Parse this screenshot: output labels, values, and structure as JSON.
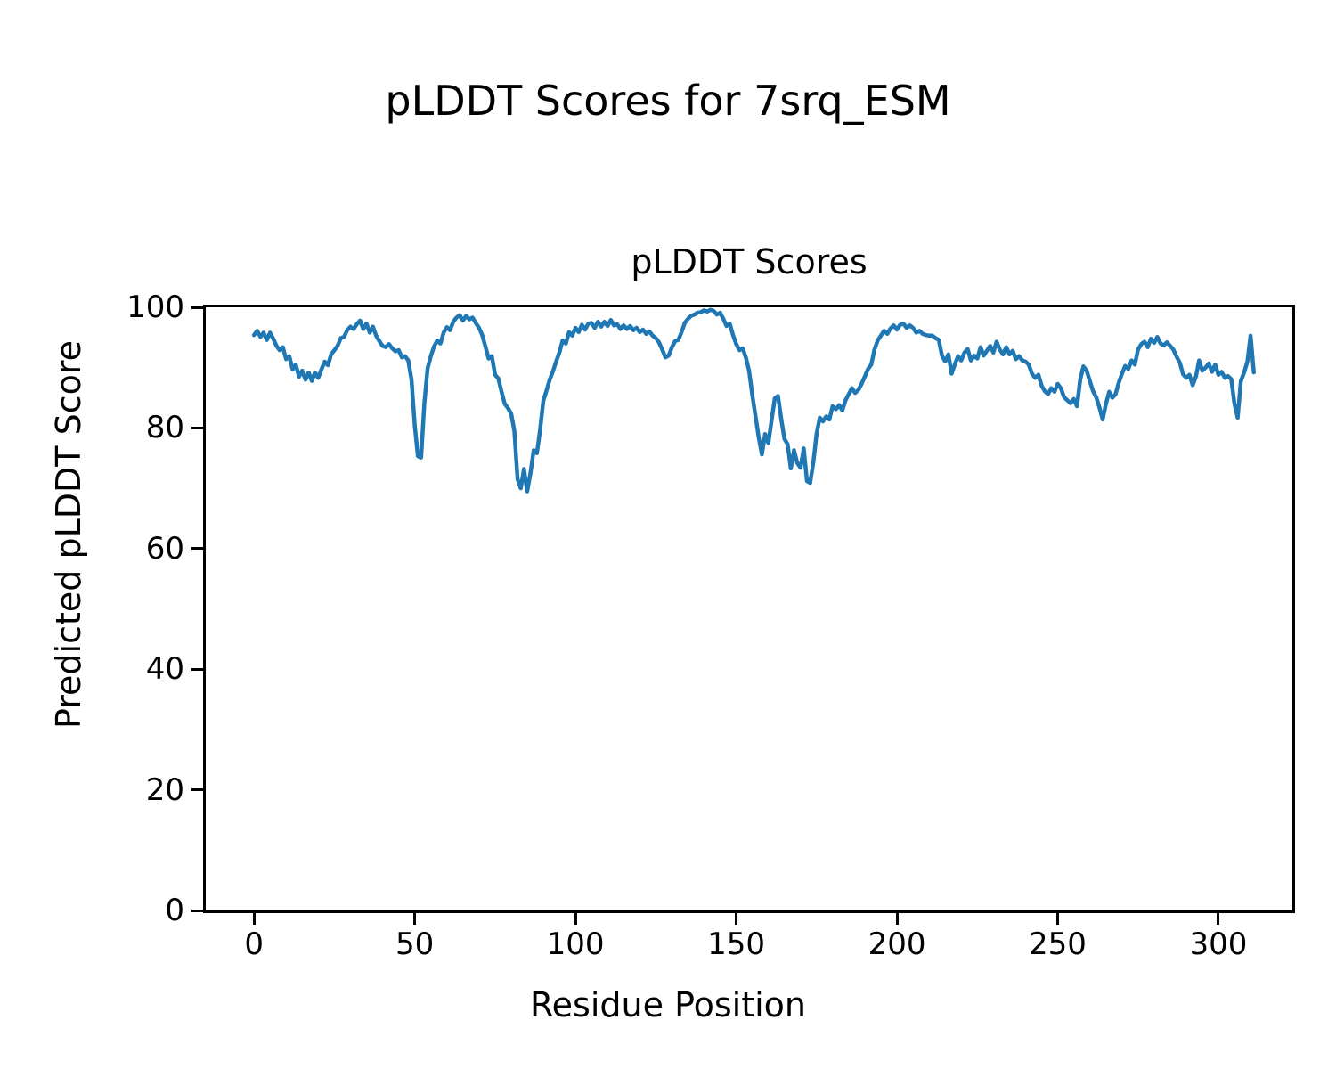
{
  "chart_data": {
    "type": "line",
    "suptitle": "pLDDT Scores for 7srq_ESM",
    "title": "pLDDT Scores",
    "xlabel": "Residue Position",
    "ylabel": "Predicted pLDDT Score",
    "legend": null,
    "grid": false,
    "line_color": "#1f77b4",
    "xlim": [
      -15,
      323
    ],
    "ylim": [
      0,
      100
    ],
    "xticks": [
      0,
      50,
      100,
      150,
      200,
      250,
      300
    ],
    "yticks": [
      0,
      20,
      40,
      60,
      80,
      100
    ],
    "x_start": 0,
    "x_step": 1,
    "series_name": "pLDDT",
    "values": [
      95.4,
      96.1,
      95.1,
      95.8,
      94.6,
      95.8,
      94.8,
      93.6,
      92.9,
      93.4,
      91.4,
      91.9,
      89.7,
      90.5,
      88.5,
      89.5,
      88.0,
      89.2,
      87.8,
      89.2,
      88.3,
      89.7,
      91.0,
      90.4,
      92.2,
      92.9,
      93.6,
      94.9,
      95.1,
      96.2,
      96.8,
      96.4,
      97.2,
      97.8,
      96.4,
      97.3,
      95.8,
      96.8,
      95.3,
      94.4,
      93.6,
      93.4,
      93.9,
      93.2,
      92.7,
      92.9,
      91.7,
      91.9,
      91.2,
      88.0,
      80.5,
      75.3,
      75.1,
      84.0,
      89.9,
      91.9,
      93.5,
      94.5,
      94.0,
      95.8,
      96.7,
      96.2,
      97.6,
      98.3,
      98.7,
      97.8,
      98.6,
      98.0,
      98.3,
      97.4,
      96.6,
      95.4,
      93.5,
      91.5,
      91.9,
      88.8,
      88.2,
      86.0,
      84.0,
      83.3,
      82.4,
      79.5,
      71.5,
      70.0,
      73.2,
      69.5,
      72.5,
      76.3,
      75.8,
      79.7,
      84.5,
      86.2,
      88.0,
      89.4,
      91.0,
      92.5,
      94.5,
      94.0,
      95.9,
      95.3,
      96.6,
      95.9,
      97.1,
      96.3,
      97.3,
      97.4,
      96.6,
      97.6,
      96.8,
      97.6,
      96.9,
      97.9,
      97.0,
      97.2,
      96.4,
      97.0,
      96.4,
      96.9,
      96.2,
      96.6,
      95.9,
      96.3,
      95.6,
      96.0,
      95.3,
      94.9,
      94.2,
      93.0,
      91.7,
      92.0,
      93.4,
      94.4,
      94.6,
      95.9,
      97.4,
      98.1,
      98.6,
      98.8,
      99.1,
      99.2,
      99.5,
      99.3,
      99.6,
      99.4,
      98.8,
      99.1,
      98.1,
      96.9,
      97.3,
      95.4,
      93.9,
      92.9,
      93.2,
      91.7,
      89.5,
      85.5,
      82.0,
      78.5,
      75.6,
      79.0,
      77.5,
      81.3,
      84.9,
      85.3,
      81.5,
      78.2,
      77.3,
      73.3,
      76.3,
      74.2,
      73.4,
      76.6,
      71.2,
      70.9,
      74.3,
      79.0,
      81.7,
      81.1,
      81.9,
      81.4,
      83.6,
      83.1,
      83.8,
      82.9,
      84.6,
      85.6,
      86.6,
      85.8,
      86.3,
      87.3,
      88.5,
      89.8,
      90.5,
      93.0,
      94.5,
      95.3,
      96.1,
      95.6,
      96.5,
      97.0,
      96.3,
      97.1,
      97.3,
      96.6,
      97.0,
      96.6,
      95.8,
      96.1,
      95.6,
      95.4,
      95.3,
      95.3,
      94.9,
      94.6,
      92.0,
      91.0,
      92.2,
      89.0,
      90.5,
      91.9,
      91.2,
      92.5,
      93.1,
      91.2,
      92.0,
      91.5,
      93.4,
      92.0,
      92.8,
      93.6,
      92.5,
      94.3,
      93.0,
      92.2,
      93.4,
      92.2,
      92.8,
      91.4,
      91.9,
      91.2,
      91.0,
      90.5,
      89.0,
      88.3,
      88.8,
      87.0,
      86.1,
      85.6,
      86.6,
      86.0,
      87.3,
      86.6,
      85.1,
      84.6,
      84.1,
      84.8,
      83.6,
      88.0,
      90.2,
      89.5,
      87.8,
      86.1,
      85.1,
      83.4,
      81.4,
      84.0,
      86.0,
      85.0,
      85.6,
      87.5,
      89.0,
      90.3,
      89.8,
      91.2,
      90.5,
      93.0,
      93.9,
      94.3,
      93.4,
      94.8,
      94.1,
      95.1,
      94.0,
      93.7,
      94.2,
      93.6,
      93.0,
      91.8,
      90.8,
      88.9,
      88.3,
      88.8,
      87.1,
      88.5,
      91.2,
      89.5,
      90.0,
      90.7,
      89.3,
      90.5,
      88.8,
      89.3,
      88.3,
      88.6,
      88.1,
      84.0,
      81.7,
      87.8,
      89.2,
      91.0,
      95.3,
      89.2
    ]
  }
}
